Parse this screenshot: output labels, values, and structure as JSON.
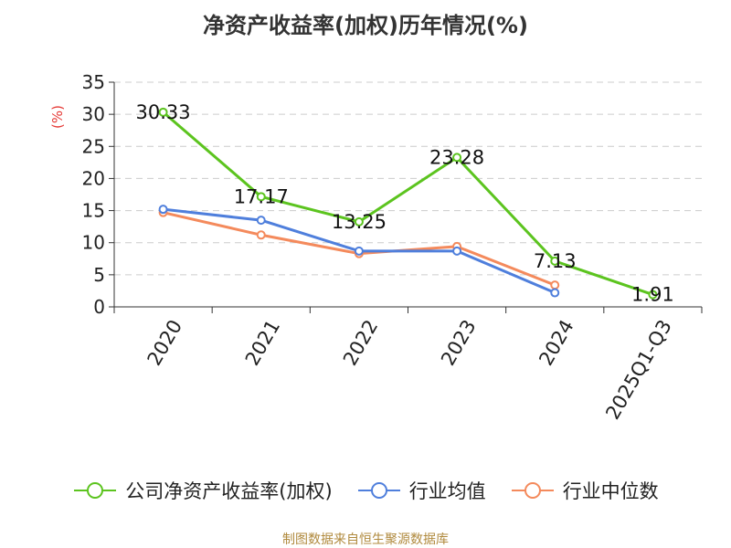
{
  "title": "净资产收益率(加权)历年情况(%)",
  "source": "制图数据来自恒生聚源数据库",
  "colors": {
    "company": "#5cc41f",
    "industry_avg": "#4f7fdc",
    "industry_median": "#f48a5c",
    "grid": "#cccccc",
    "axis": "#333333",
    "unit": "#e53935"
  },
  "chart_data": {
    "type": "line",
    "title": "净资产收益率(加权)历年情况(%)",
    "ylabel": "(%)",
    "categories": [
      "2020",
      "2021",
      "2022",
      "2023",
      "2024",
      "2025Q1-Q3"
    ],
    "ylim": [
      0,
      35
    ],
    "yticks": [
      0,
      5,
      10,
      15,
      20,
      25,
      30,
      35
    ],
    "grid": true,
    "legend_position": "bottom",
    "series": [
      {
        "name": "公司净资产收益率(加权)",
        "values": [
          30.33,
          17.17,
          13.25,
          23.28,
          7.13,
          1.91
        ],
        "labels": [
          "30.33",
          "17.17",
          "13.25",
          "23.28",
          "7.13",
          "1.91"
        ]
      },
      {
        "name": "行业均值",
        "values": [
          15.2,
          13.5,
          8.7,
          8.7,
          2.2,
          null
        ]
      },
      {
        "name": "行业中位数",
        "values": [
          14.7,
          11.2,
          8.3,
          9.4,
          3.4,
          null
        ]
      }
    ]
  }
}
